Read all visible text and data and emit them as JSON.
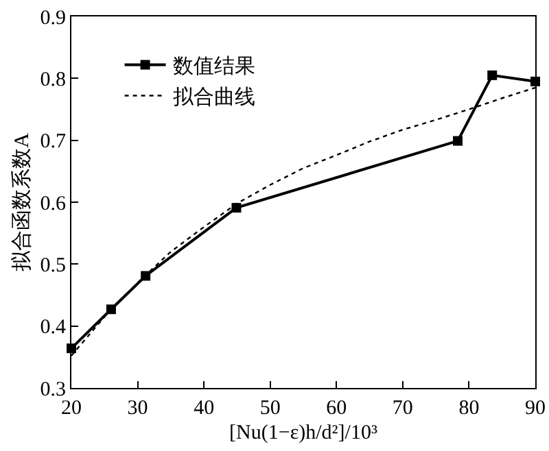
{
  "chart_data": {
    "type": "line",
    "xlabel": "[Nu(1−ε)h/d²]/10³",
    "ylabel": "拟合函数系数A",
    "xlim": [
      20,
      90
    ],
    "xticks": [
      20,
      30,
      40,
      50,
      60,
      70,
      80,
      90
    ],
    "ylim": [
      0.3,
      0.9
    ],
    "yticks": [
      0.3,
      0.4,
      0.5,
      0.6,
      0.7,
      0.8,
      0.9
    ],
    "grid": false,
    "legend": "top left",
    "series": [
      {
        "name": "数值结果",
        "color": "#000000",
        "marker": "square",
        "line_style": "solid",
        "x": [
          20,
          26,
          31.2,
          44.9,
          78.3,
          83.5,
          90
        ],
        "values": [
          0.364,
          0.427,
          0.481,
          0.591,
          0.699,
          0.805,
          0.795
        ]
      },
      {
        "name": "拟合曲线",
        "color": "#000000",
        "marker": "none",
        "line_style": "dotted",
        "x": [
          20,
          25,
          30,
          35,
          40,
          45,
          50,
          55,
          60,
          65,
          70,
          75,
          80,
          85,
          90
        ],
        "values": [
          0.352,
          0.415,
          0.47,
          0.52,
          0.56,
          0.598,
          0.628,
          0.655,
          0.676,
          0.698,
          0.717,
          0.733,
          0.75,
          0.768,
          0.785
        ]
      }
    ]
  }
}
